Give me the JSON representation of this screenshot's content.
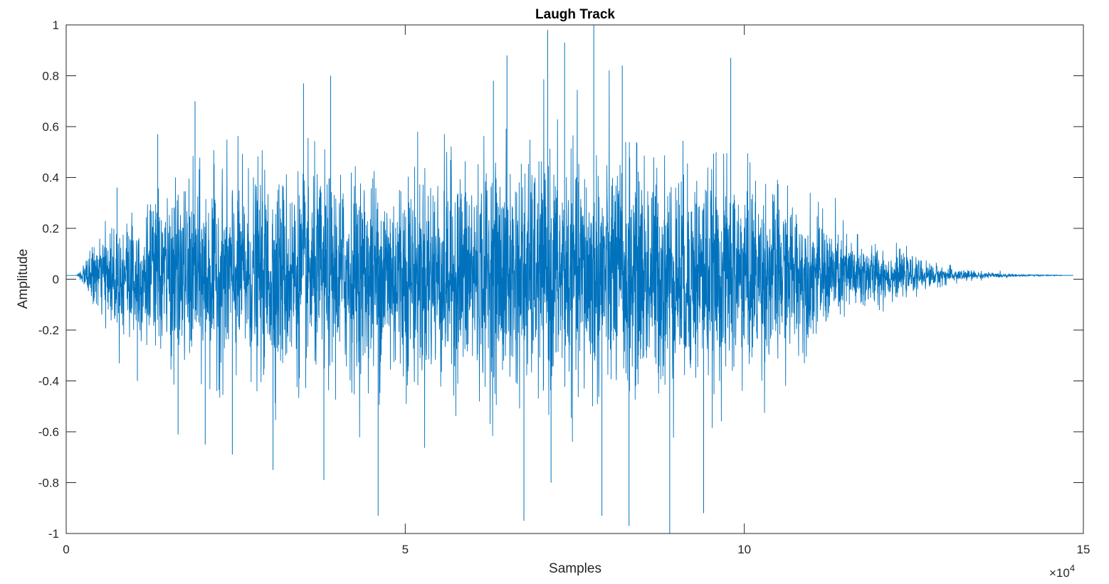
{
  "chart_data": {
    "type": "line",
    "title": "Laugh Track",
    "xlabel": "Samples",
    "ylabel": "Amplitude",
    "xlim": [
      0,
      150000
    ],
    "ylim": [
      -1,
      1
    ],
    "x_scale_label": "×10",
    "x_scale_exponent": "4",
    "xticks": [
      0,
      50000,
      100000,
      150000
    ],
    "xtick_labels": [
      "0",
      "5",
      "10",
      "15"
    ],
    "yticks": [
      -1,
      -0.8,
      -0.6,
      -0.4,
      -0.2,
      0,
      0.2,
      0.4,
      0.6,
      0.8,
      1
    ],
    "ytick_labels": [
      "-1",
      "-0.8",
      "-0.6",
      "-0.4",
      "-0.2",
      "0",
      "0.2",
      "0.4",
      "0.6",
      "0.8",
      "1"
    ],
    "grid": false,
    "box": true,
    "series": [
      {
        "color": "#0072BD",
        "x_start": 0,
        "x_end": 148500,
        "baseline": 0.015,
        "envelope": {
          "x": [
            0,
            1500,
            2500,
            4000,
            7000,
            10000,
            15000,
            20000,
            30000,
            40000,
            50000,
            60000,
            70000,
            80000,
            90000,
            100000,
            105000,
            110000,
            115000,
            120000,
            125000,
            130000,
            135000,
            140000,
            148500
          ],
          "amplitude": [
            0.0,
            0.0,
            0.04,
            0.12,
            0.22,
            0.28,
            0.34,
            0.4,
            0.42,
            0.42,
            0.44,
            0.46,
            0.48,
            0.5,
            0.46,
            0.42,
            0.36,
            0.26,
            0.18,
            0.12,
            0.07,
            0.035,
            0.015,
            0.005,
            0.0
          ]
        },
        "peaks": [
          {
            "x": 71000,
            "y": 0.98
          },
          {
            "x": 77800,
            "y": 1.0
          },
          {
            "x": 73500,
            "y": 0.93
          },
          {
            "x": 65000,
            "y": 0.88
          },
          {
            "x": 98000,
            "y": 0.87
          },
          {
            "x": 82000,
            "y": 0.84
          },
          {
            "x": 39000,
            "y": 0.8
          },
          {
            "x": 35000,
            "y": 0.77
          },
          {
            "x": 63000,
            "y": 0.78
          },
          {
            "x": 19000,
            "y": 0.7
          },
          {
            "x": 13500,
            "y": 0.57
          },
          {
            "x": 7500,
            "y": 0.36
          },
          {
            "x": 46000,
            "y": -0.93
          },
          {
            "x": 89000,
            "y": -1.0
          },
          {
            "x": 83000,
            "y": -0.97
          },
          {
            "x": 67500,
            "y": -0.95
          },
          {
            "x": 79000,
            "y": -0.93
          },
          {
            "x": 94000,
            "y": -0.92
          },
          {
            "x": 71500,
            "y": -0.8
          },
          {
            "x": 30500,
            "y": -0.75
          },
          {
            "x": 38000,
            "y": -0.79
          },
          {
            "x": 16500,
            "y": -0.61
          },
          {
            "x": 20500,
            "y": -0.65
          },
          {
            "x": 24500,
            "y": -0.69
          },
          {
            "x": 10500,
            "y": -0.4
          }
        ]
      }
    ]
  }
}
